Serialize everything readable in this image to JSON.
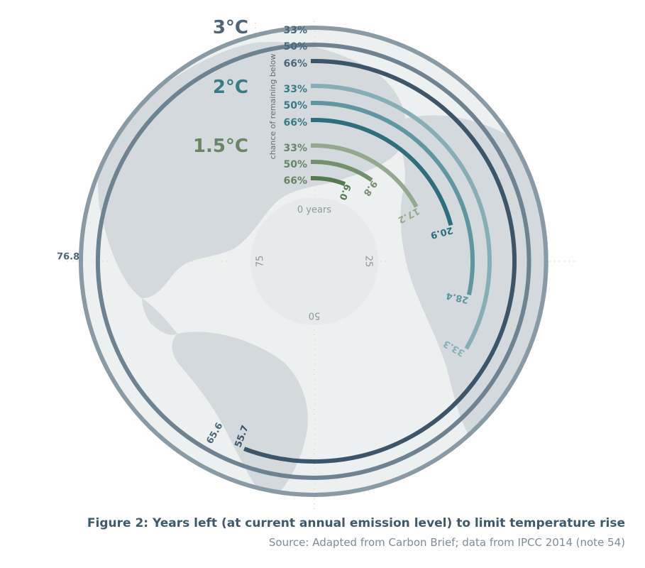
{
  "chart_data": {
    "type": "radial-bar",
    "unit_label": "years",
    "full_circle_years": 100,
    "axis_ticks": [
      {
        "label": "0 years",
        "value": 0
      },
      {
        "label": "25",
        "value": 25
      },
      {
        "label": "50",
        "value": 50
      },
      {
        "label": "75",
        "value": 75
      }
    ],
    "axis_title": "chance of remaining below",
    "groups": [
      {
        "name": "3°C",
        "color": "#4e6678",
        "series": [
          {
            "name": "33%",
            "value": 100,
            "color": "#8a9aa5"
          },
          {
            "name": "50%",
            "value": 100,
            "color": "#6f8290"
          },
          {
            "name": "66%",
            "value": 55.7,
            "value_label": "55.7",
            "color": "#3d5568"
          }
        ]
      },
      {
        "name": "2°C",
        "color": "#3c7a86",
        "series": [
          {
            "name": "33%",
            "value": 33.3,
            "value_label": "33.3",
            "color": "#86aeb4"
          },
          {
            "name": "50%",
            "value": 28.4,
            "value_label": "28.4",
            "color": "#5f96a0"
          },
          {
            "name": "66%",
            "value": 20.9,
            "value_label": "20.9",
            "color": "#2f6e7c"
          }
        ]
      },
      {
        "name": "1.5°C",
        "color": "#6a8468",
        "series": [
          {
            "name": "33%",
            "value": 17.2,
            "value_label": "17.2",
            "color": "#94a88e"
          },
          {
            "name": "50%",
            "value": 9.8,
            "value_label": "9.8",
            "color": "#76906f"
          },
          {
            "name": "66%",
            "value": 6.0,
            "value_label": "6.0",
            "color": "#557a50"
          }
        ]
      }
    ],
    "outer_wrap_labels": [
      {
        "text": "76.8",
        "ring": "3°C 33%"
      },
      {
        "text": "65.6",
        "ring": "3°C 50%"
      }
    ]
  },
  "caption": {
    "title": "Figure 2: Years left (at current annual emission level) to limit temperature rise",
    "source": "Source: Adapted from Carbon Brief;  data from IPCC 2014 (note 54)"
  }
}
